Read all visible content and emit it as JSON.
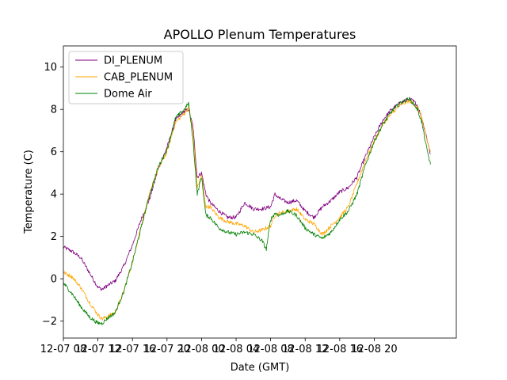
{
  "chart_data": {
    "type": "line",
    "title": "APOLLO Plenum Temperatures",
    "xlabel": "Date (GMT)",
    "ylabel": "Temperature (C)",
    "x_unit": "hours since 12-07 08:00 GMT",
    "xlim": [
      0,
      45.5
    ],
    "ylim": [
      -2.8,
      11
    ],
    "x_ticks": [
      {
        "value": 0,
        "label": "12-07 08"
      },
      {
        "value": 4,
        "label": "12-07 12"
      },
      {
        "value": 8,
        "label": "12-07 16"
      },
      {
        "value": 12,
        "label": "12-07 20"
      },
      {
        "value": 16,
        "label": "12-08 00"
      },
      {
        "value": 20,
        "label": "12-08 04"
      },
      {
        "value": 24,
        "label": "12-08 08"
      },
      {
        "value": 28,
        "label": "12-08 12"
      },
      {
        "value": 32,
        "label": "12-08 16"
      },
      {
        "value": 36,
        "label": "12-08 20"
      }
    ],
    "y_ticks": [
      {
        "value": -2,
        "label": "−2"
      },
      {
        "value": 0,
        "label": "0"
      },
      {
        "value": 2,
        "label": "2"
      },
      {
        "value": 4,
        "label": "4"
      },
      {
        "value": 6,
        "label": "6"
      },
      {
        "value": 8,
        "label": "8"
      },
      {
        "value": 10,
        "label": "10"
      }
    ],
    "legend_position": "top-left",
    "series": [
      {
        "name": "DI_PLENUM",
        "color": "#800080",
        "points": [
          [
            0,
            1.5
          ],
          [
            1,
            1.3
          ],
          [
            2,
            1.0
          ],
          [
            3,
            0.3
          ],
          [
            4,
            -0.4
          ],
          [
            4.5,
            -0.5
          ],
          [
            5,
            -0.35
          ],
          [
            6,
            -0.1
          ],
          [
            7,
            0.6
          ],
          [
            8,
            1.6
          ],
          [
            9,
            2.8
          ],
          [
            10,
            3.8
          ],
          [
            11,
            5.2
          ],
          [
            12,
            6.2
          ],
          [
            13,
            7.5
          ],
          [
            14,
            7.9
          ],
          [
            14.5,
            8.0
          ],
          [
            15,
            7.2
          ],
          [
            15.5,
            4.8
          ],
          [
            16,
            5.0
          ],
          [
            16.5,
            4.0
          ],
          [
            17,
            3.6
          ],
          [
            18,
            3.2
          ],
          [
            19,
            2.9
          ],
          [
            20,
            2.9
          ],
          [
            21,
            3.6
          ],
          [
            22,
            3.3
          ],
          [
            23,
            3.3
          ],
          [
            24,
            3.4
          ],
          [
            24.5,
            4.0
          ],
          [
            25,
            3.8
          ],
          [
            26,
            3.6
          ],
          [
            27,
            3.7
          ],
          [
            28,
            3.2
          ],
          [
            29,
            2.9
          ],
          [
            30,
            3.4
          ],
          [
            31,
            3.7
          ],
          [
            32,
            4.1
          ],
          [
            33,
            4.3
          ],
          [
            34,
            4.8
          ],
          [
            35,
            5.8
          ],
          [
            36,
            6.7
          ],
          [
            37,
            7.5
          ],
          [
            38,
            8.0
          ],
          [
            39,
            8.3
          ],
          [
            40,
            8.5
          ],
          [
            40.5,
            8.4
          ],
          [
            41,
            8.2
          ],
          [
            41.5,
            7.6
          ],
          [
            42,
            6.8
          ],
          [
            42.5,
            5.9
          ]
        ]
      },
      {
        "name": "CAB_PLENUM",
        "color": "#ffa500",
        "points": [
          [
            0,
            0.3
          ],
          [
            1,
            0.1
          ],
          [
            2,
            -0.4
          ],
          [
            3,
            -1.1
          ],
          [
            4,
            -1.7
          ],
          [
            4.5,
            -1.9
          ],
          [
            5,
            -1.8
          ],
          [
            6,
            -1.6
          ],
          [
            7,
            -0.6
          ],
          [
            8,
            0.8
          ],
          [
            9,
            2.5
          ],
          [
            10,
            4.0
          ],
          [
            11,
            5.2
          ],
          [
            12,
            6.0
          ],
          [
            13,
            7.4
          ],
          [
            14,
            7.8
          ],
          [
            14.5,
            8.1
          ],
          [
            15,
            7.0
          ],
          [
            15.5,
            4.3
          ],
          [
            16,
            4.9
          ],
          [
            16.5,
            3.4
          ],
          [
            17,
            3.4
          ],
          [
            18,
            2.9
          ],
          [
            19,
            2.7
          ],
          [
            20,
            2.6
          ],
          [
            21,
            2.5
          ],
          [
            22,
            2.2
          ],
          [
            23,
            2.3
          ],
          [
            24,
            2.5
          ],
          [
            24.5,
            3.0
          ],
          [
            25,
            3.1
          ],
          [
            26,
            3.2
          ],
          [
            27,
            3.3
          ],
          [
            28,
            2.8
          ],
          [
            29,
            2.6
          ],
          [
            30,
            2.1
          ],
          [
            31,
            2.5
          ],
          [
            32,
            2.9
          ],
          [
            33,
            3.4
          ],
          [
            34,
            4.5
          ],
          [
            35,
            5.6
          ],
          [
            36,
            6.5
          ],
          [
            37,
            7.3
          ],
          [
            38,
            7.8
          ],
          [
            39,
            8.2
          ],
          [
            40,
            8.4
          ],
          [
            40.5,
            8.3
          ],
          [
            41,
            8.1
          ],
          [
            41.5,
            7.6
          ],
          [
            42,
            6.7
          ],
          [
            42.5,
            6.0
          ]
        ]
      },
      {
        "name": "Dome Air",
        "color": "#008000",
        "points": [
          [
            0,
            -0.2
          ],
          [
            1,
            -0.7
          ],
          [
            2,
            -1.3
          ],
          [
            3,
            -1.8
          ],
          [
            4,
            -2.1
          ],
          [
            4.5,
            -2.1
          ],
          [
            5,
            -1.9
          ],
          [
            6,
            -1.6
          ],
          [
            7,
            -0.6
          ],
          [
            8,
            0.8
          ],
          [
            9,
            2.4
          ],
          [
            10,
            4.0
          ],
          [
            11,
            5.3
          ],
          [
            12,
            6.1
          ],
          [
            13,
            7.6
          ],
          [
            14,
            8.0
          ],
          [
            14.5,
            8.3
          ],
          [
            15,
            6.6
          ],
          [
            15.5,
            4.0
          ],
          [
            16,
            4.8
          ],
          [
            16.5,
            3.0
          ],
          [
            17,
            2.9
          ],
          [
            18,
            2.4
          ],
          [
            19,
            2.2
          ],
          [
            20,
            2.1
          ],
          [
            21,
            2.2
          ],
          [
            22,
            2.1
          ],
          [
            23,
            1.8
          ],
          [
            23.5,
            1.4
          ],
          [
            24,
            2.8
          ],
          [
            24.5,
            3.1
          ],
          [
            25,
            3.0
          ],
          [
            26,
            3.2
          ],
          [
            27,
            3.0
          ],
          [
            28,
            2.4
          ],
          [
            29,
            2.1
          ],
          [
            30,
            1.9
          ],
          [
            31,
            2.2
          ],
          [
            32,
            2.8
          ],
          [
            33,
            3.2
          ],
          [
            34,
            4.0
          ],
          [
            35,
            5.4
          ],
          [
            36,
            6.5
          ],
          [
            37,
            7.3
          ],
          [
            38,
            7.9
          ],
          [
            39,
            8.3
          ],
          [
            40,
            8.5
          ],
          [
            40.5,
            8.3
          ],
          [
            41,
            8.0
          ],
          [
            41.5,
            7.4
          ],
          [
            42,
            6.3
          ],
          [
            42.5,
            5.4
          ]
        ]
      }
    ]
  }
}
